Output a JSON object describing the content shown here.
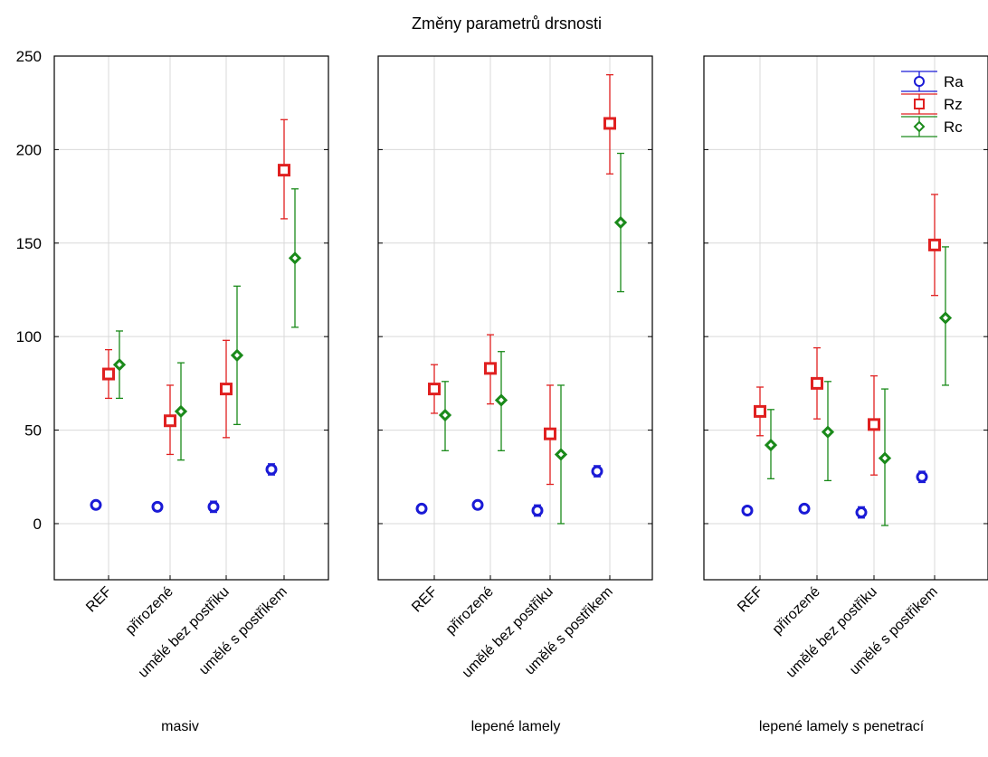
{
  "chart_data": {
    "type": "scatter",
    "title": "Změny parametrů drsnosti",
    "ylim": [
      -30,
      250
    ],
    "yticks": [
      0,
      50,
      100,
      150,
      200,
      250
    ],
    "grid": true,
    "legend_placement": "top-right",
    "categories": [
      "REF",
      "přirozené",
      "umělé bez postřiku",
      "umělé s postřikem"
    ],
    "panels": [
      {
        "label": "masiv",
        "series": [
          {
            "name": "Ra",
            "color": "#1a1ad6",
            "marker": "circle",
            "values": [
              10,
              9,
              9,
              29
            ],
            "lower": [
              10,
              9,
              6,
              26
            ],
            "upper": [
              10,
              9,
              12,
              32
            ]
          },
          {
            "name": "Rz",
            "color": "#e02020",
            "marker": "square",
            "values": [
              80,
              55,
              72,
              189
            ],
            "lower": [
              67,
              37,
              46,
              163
            ],
            "upper": [
              93,
              74,
              98,
              216
            ]
          },
          {
            "name": "Rc",
            "color": "#1a8a1a",
            "marker": "diamond",
            "values": [
              85,
              60,
              90,
              142
            ],
            "lower": [
              67,
              34,
              53,
              105
            ],
            "upper": [
              103,
              86,
              127,
              179
            ]
          }
        ]
      },
      {
        "label": "lepené lamely",
        "series": [
          {
            "name": "Ra",
            "color": "#1a1ad6",
            "marker": "circle",
            "values": [
              8,
              10,
              7,
              28
            ],
            "lower": [
              8,
              10,
              4,
              25
            ],
            "upper": [
              8,
              10,
              10,
              31
            ]
          },
          {
            "name": "Rz",
            "color": "#e02020",
            "marker": "square",
            "values": [
              72,
              83,
              48,
              214
            ],
            "lower": [
              59,
              64,
              21,
              187
            ],
            "upper": [
              85,
              101,
              74,
              240
            ]
          },
          {
            "name": "Rc",
            "color": "#1a8a1a",
            "marker": "diamond",
            "values": [
              58,
              66,
              37,
              161
            ],
            "lower": [
              39,
              39,
              0,
              124
            ],
            "upper": [
              76,
              92,
              74,
              198
            ]
          }
        ]
      },
      {
        "label": "lepené lamely s penetrací",
        "series": [
          {
            "name": "Ra",
            "color": "#1a1ad6",
            "marker": "circle",
            "values": [
              7,
              8,
              6,
              25
            ],
            "lower": [
              7,
              8,
              3,
              22
            ],
            "upper": [
              7,
              8,
              9,
              28
            ]
          },
          {
            "name": "Rz",
            "color": "#e02020",
            "marker": "square",
            "values": [
              60,
              75,
              53,
              149
            ],
            "lower": [
              47,
              56,
              26,
              122
            ],
            "upper": [
              73,
              94,
              79,
              176
            ]
          },
          {
            "name": "Rc",
            "color": "#1a8a1a",
            "marker": "diamond",
            "values": [
              42,
              49,
              35,
              110
            ],
            "lower": [
              24,
              23,
              -1,
              74
            ],
            "upper": [
              61,
              76,
              72,
              148
            ]
          }
        ]
      }
    ]
  }
}
